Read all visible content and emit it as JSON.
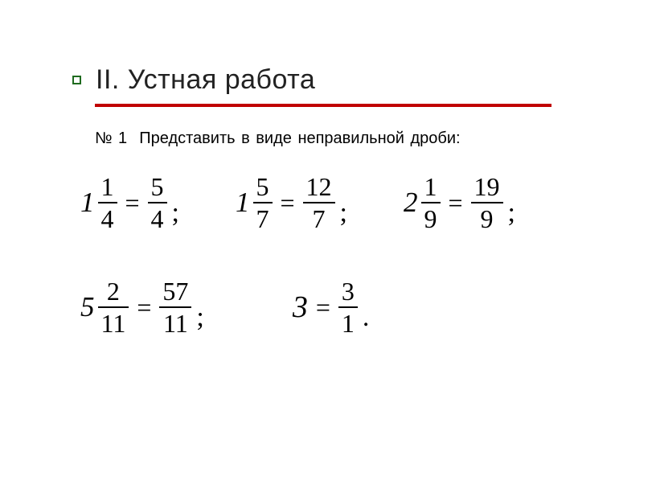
{
  "title": "II. Устная работа",
  "subtitle_no": "№ 1",
  "subtitle_text": "Представить в виде неправильной дроби:",
  "colors": {
    "underline": "#c00000",
    "bullet_border": "#1f6b1f",
    "text": "#000000",
    "background": "#ffffff"
  },
  "row1": [
    {
      "whole": "1",
      "num": "1",
      "den": "4",
      "rnum": "5",
      "rden": "4",
      "p": ";"
    },
    {
      "whole": "1",
      "num": "5",
      "den": "7",
      "rnum": "12",
      "rden": "7",
      "p": ";"
    },
    {
      "whole": "2",
      "num": "1",
      "den": "9",
      "rnum": "19",
      "rden": "9",
      "p": ";"
    }
  ],
  "row2": [
    {
      "whole": "5",
      "num": "2",
      "den": "11",
      "rnum": "57",
      "rden": "11",
      "p": ";"
    },
    {
      "whole": "3",
      "num": "",
      "den": "",
      "rnum": "3",
      "rden": "1",
      "p": "."
    }
  ]
}
